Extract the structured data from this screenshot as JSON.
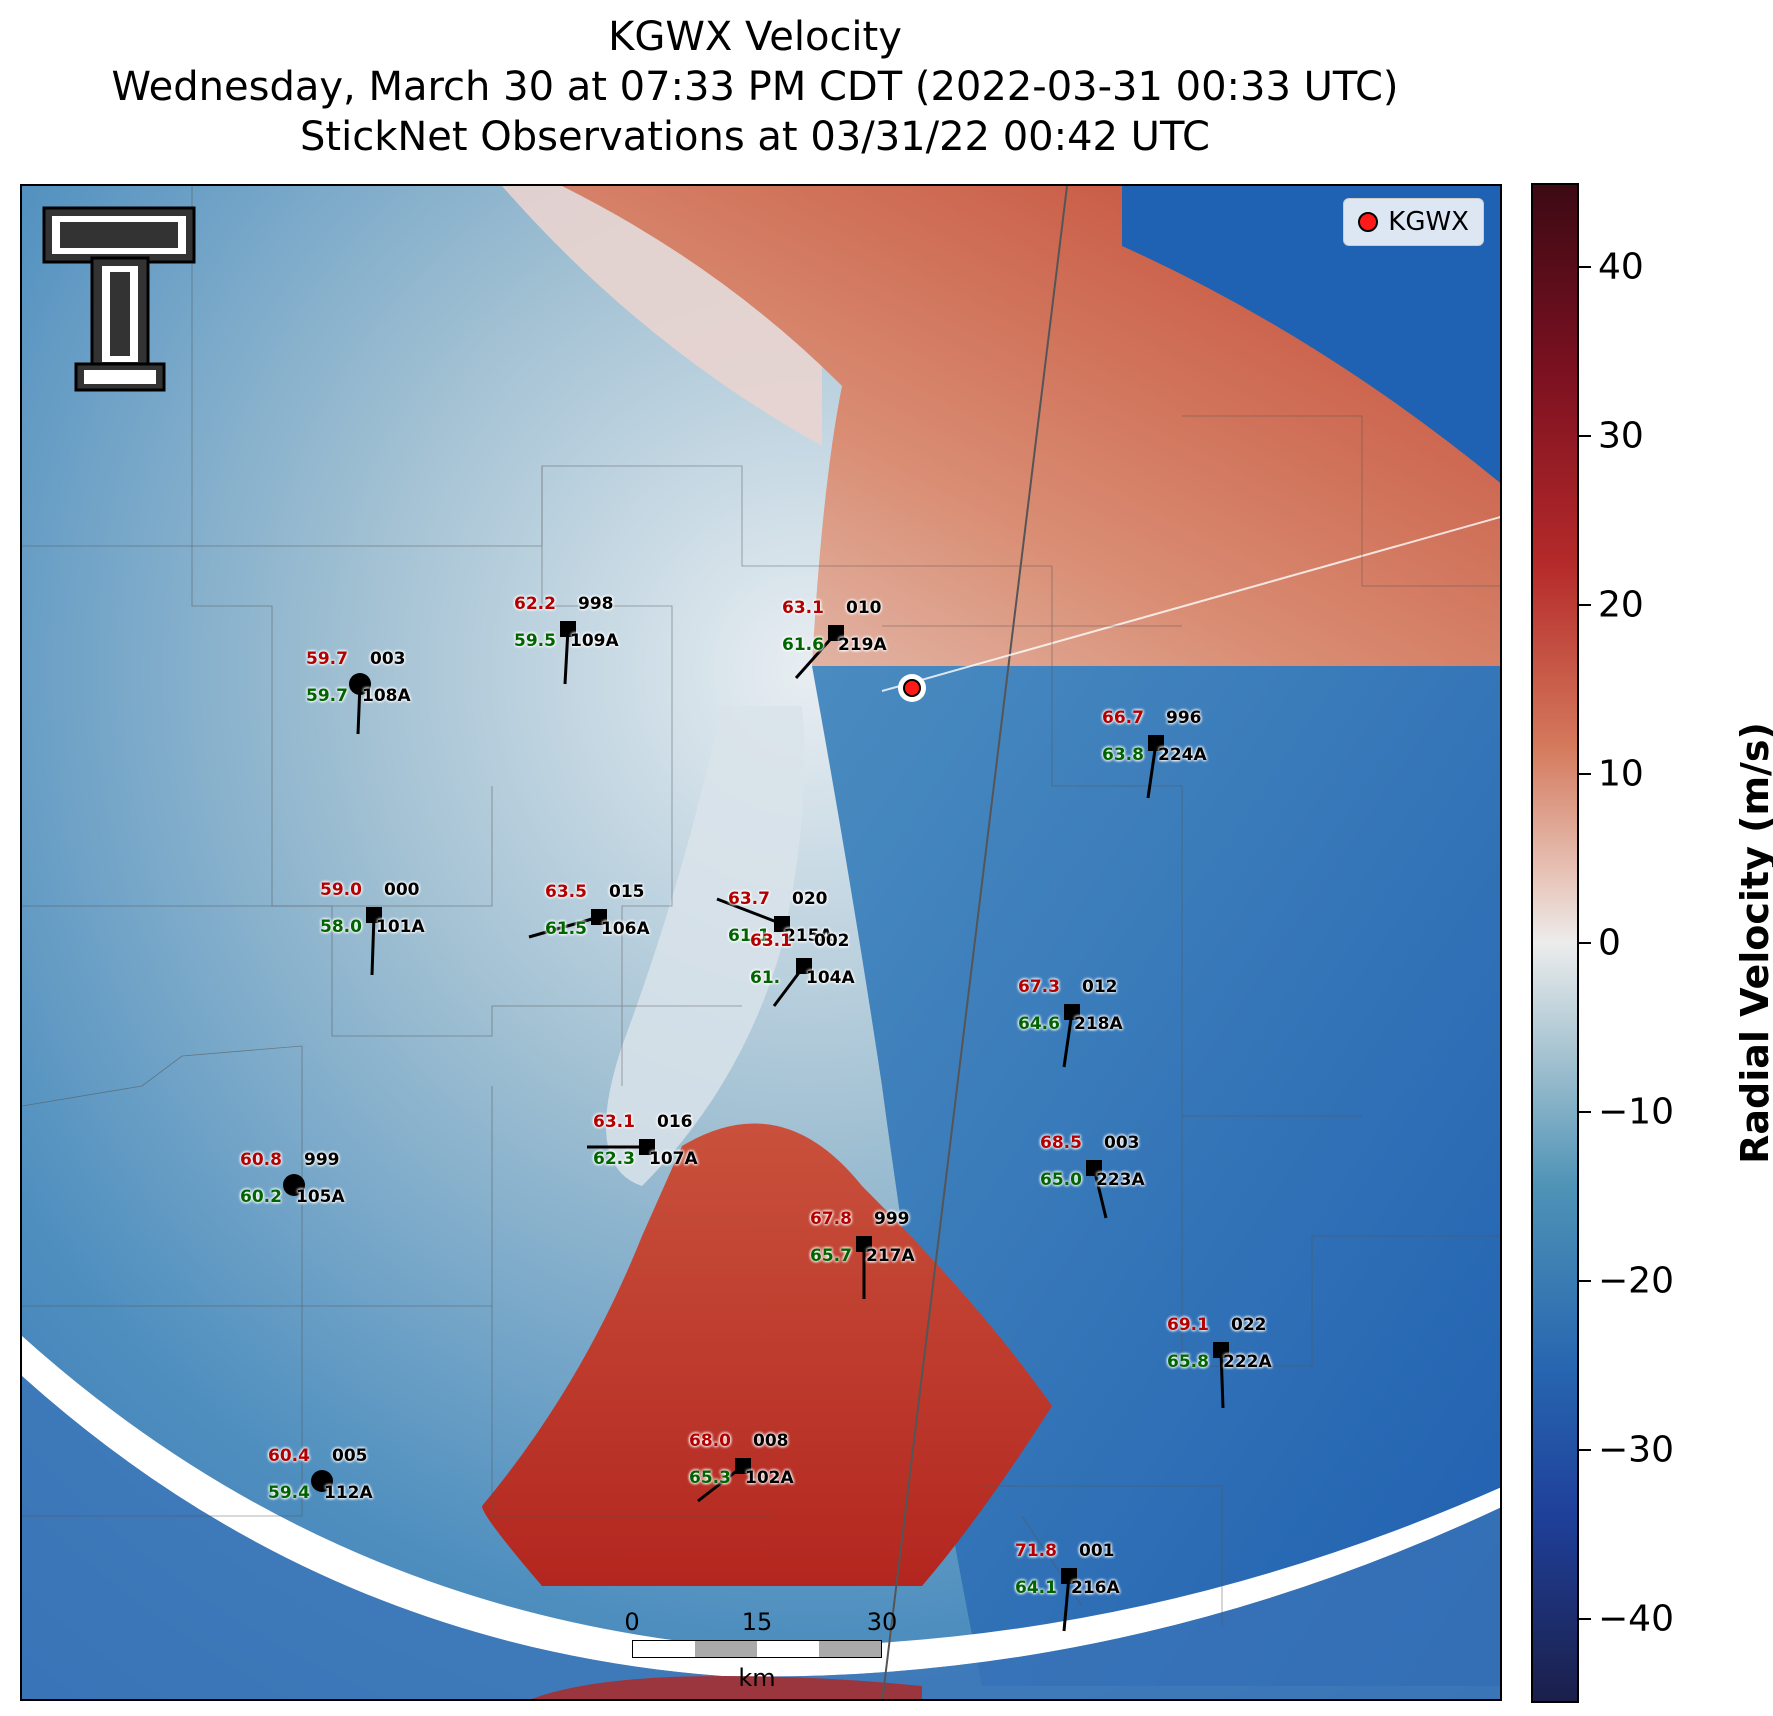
{
  "title": {
    "line1": "KGWX Velocity",
    "line2": "Wednesday, March 30 at 07:33 PM CDT (2022-03-31 00:33 UTC)",
    "line3": "StickNet Observations at 03/31/22 00:42 UTC"
  },
  "legend": {
    "label": "KGWX",
    "color": "#ff1a1a"
  },
  "scalebar": {
    "ticks": [
      "0",
      "15",
      "30"
    ],
    "unit": "km"
  },
  "colorbar": {
    "label": "Radial Velocity (m/s)",
    "ticks": [
      "40",
      "30",
      "20",
      "10",
      "0",
      "−10",
      "−20",
      "−30",
      "−40"
    ],
    "range": [
      -45,
      45
    ]
  },
  "stations": [
    {
      "id": "108A",
      "num": "003",
      "temp": "59.7",
      "dew": "59.7",
      "marker": "circle"
    },
    {
      "id": "109A",
      "num": "998",
      "temp": "62.2",
      "dew": "59.5",
      "marker": "square"
    },
    {
      "id": "219A",
      "num": "010",
      "temp": "63.1",
      "dew": "61.6",
      "marker": "square"
    },
    {
      "id": "224A",
      "num": "996",
      "temp": "66.7",
      "dew": "63.8",
      "marker": "square"
    },
    {
      "id": "101A",
      "num": "000",
      "temp": "59.0",
      "dew": "58.0",
      "marker": "square"
    },
    {
      "id": "106A",
      "num": "015",
      "temp": "63.5",
      "dew": "61.5",
      "marker": "square"
    },
    {
      "id": "215A",
      "num": "020",
      "temp": "63.7",
      "dew": "61.1",
      "marker": "square"
    },
    {
      "id": "218A",
      "num": "012",
      "temp": "67.3",
      "dew": "64.6",
      "marker": "square"
    },
    {
      "id": "104A",
      "num": "002",
      "temp": "63.1",
      "dew": "61.",
      "marker": "square"
    },
    {
      "id": "107A",
      "num": "016",
      "temp": "63.1",
      "dew": "62.3",
      "marker": "square"
    },
    {
      "id": "105A",
      "num": "999",
      "temp": "60.8",
      "dew": "60.2",
      "marker": "circle"
    },
    {
      "id": "223A",
      "num": "003",
      "temp": "68.5",
      "dew": "65.0",
      "marker": "square"
    },
    {
      "id": "217A",
      "num": "999",
      "temp": "67.8",
      "dew": "65.7",
      "marker": "square"
    },
    {
      "id": "222A",
      "num": "022",
      "temp": "69.1",
      "dew": "65.8",
      "marker": "square"
    },
    {
      "id": "102A",
      "num": "008",
      "temp": "68.0",
      "dew": "65.3",
      "marker": "square"
    },
    {
      "id": "112A",
      "num": "005",
      "temp": "60.4",
      "dew": "59.4",
      "marker": "circle"
    },
    {
      "id": "216A",
      "num": "001",
      "temp": "71.8",
      "dew": "64.1",
      "marker": "square"
    }
  ]
}
